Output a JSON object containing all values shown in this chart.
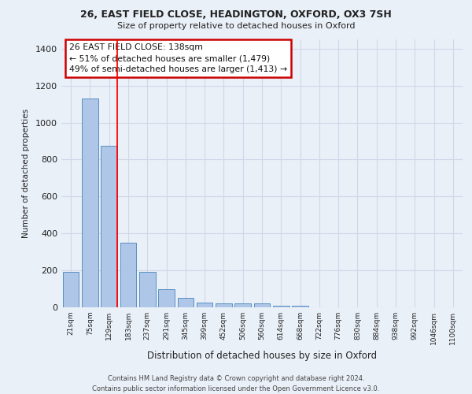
{
  "title_line1": "26, EAST FIELD CLOSE, HEADINGTON, OXFORD, OX3 7SH",
  "title_line2": "Size of property relative to detached houses in Oxford",
  "xlabel": "Distribution of detached houses by size in Oxford",
  "ylabel": "Number of detached properties",
  "footnote": "Contains HM Land Registry data © Crown copyright and database right 2024.\nContains public sector information licensed under the Open Government Licence v3.0.",
  "bar_labels": [
    "21sqm",
    "75sqm",
    "129sqm",
    "183sqm",
    "237sqm",
    "291sqm",
    "345sqm",
    "399sqm",
    "452sqm",
    "506sqm",
    "560sqm",
    "614sqm",
    "668sqm",
    "722sqm",
    "776sqm",
    "830sqm",
    "884sqm",
    "938sqm",
    "992sqm",
    "1046sqm",
    "1100sqm"
  ],
  "bar_values": [
    193,
    1130,
    875,
    350,
    190,
    100,
    50,
    25,
    20,
    20,
    20,
    10,
    10,
    0,
    0,
    0,
    0,
    0,
    0,
    0,
    0
  ],
  "bar_color": "#aec6e8",
  "bar_edge_color": "#5a8fc2",
  "grid_color": "#d0d8e8",
  "background_color": "#eaf0f8",
  "annotation_box_text": "26 EAST FIELD CLOSE: 138sqm\n← 51% of detached houses are smaller (1,479)\n49% of semi-detached houses are larger (1,413) →",
  "annotation_box_color": "#ffffff",
  "annotation_box_edge_color": "#cc0000",
  "red_line_index": 2,
  "ylim": [
    0,
    1450
  ],
  "yticks": [
    0,
    200,
    400,
    600,
    800,
    1000,
    1200,
    1400
  ]
}
